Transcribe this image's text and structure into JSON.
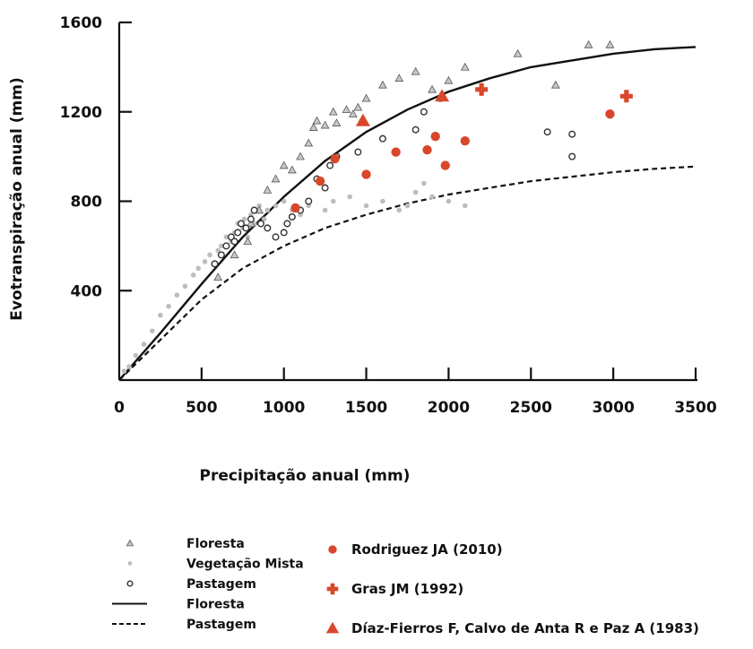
{
  "chart_data": {
    "type": "scatter",
    "xlabel": "Precipitação anual (mm)",
    "ylabel": "Evotranspiração anual (mm)",
    "xlim": [
      0,
      3500
    ],
    "ylim": [
      0,
      1600
    ],
    "xticks": [
      0,
      500,
      1000,
      1500,
      2000,
      2500,
      3000,
      3500
    ],
    "yticks": [
      400,
      800,
      1200,
      1600
    ],
    "grid": false,
    "legend_placement": "bottom",
    "colors": {
      "rodriguez": "#d9472b",
      "gras": "#d9472b",
      "diaz": "#d9472b",
      "background_points": "#999999"
    },
    "series": [
      {
        "name": "Floresta",
        "kind": "scatter",
        "marker": "small-triangle",
        "points": [
          [
            600,
            460
          ],
          [
            700,
            560
          ],
          [
            780,
            620
          ],
          [
            800,
            700
          ],
          [
            850,
            760
          ],
          [
            900,
            850
          ],
          [
            950,
            900
          ],
          [
            1000,
            960
          ],
          [
            1050,
            940
          ],
          [
            1100,
            1000
          ],
          [
            1150,
            1060
          ],
          [
            1180,
            1130
          ],
          [
            1200,
            1160
          ],
          [
            1250,
            1140
          ],
          [
            1300,
            1200
          ],
          [
            1320,
            1150
          ],
          [
            1380,
            1210
          ],
          [
            1420,
            1190
          ],
          [
            1450,
            1220
          ],
          [
            1500,
            1260
          ],
          [
            1600,
            1320
          ],
          [
            1700,
            1350
          ],
          [
            1800,
            1380
          ],
          [
            1900,
            1300
          ],
          [
            2000,
            1340
          ],
          [
            2100,
            1400
          ],
          [
            2420,
            1460
          ],
          [
            2650,
            1320
          ],
          [
            2850,
            1500
          ],
          [
            2980,
            1500
          ]
        ]
      },
      {
        "name": "Vegetação Mista",
        "kind": "scatter",
        "marker": "light-dot",
        "points": [
          [
            30,
            40
          ],
          [
            60,
            60
          ],
          [
            100,
            110
          ],
          [
            150,
            160
          ],
          [
            200,
            220
          ],
          [
            250,
            290
          ],
          [
            300,
            330
          ],
          [
            350,
            380
          ],
          [
            400,
            420
          ],
          [
            450,
            470
          ],
          [
            480,
            500
          ],
          [
            520,
            530
          ],
          [
            550,
            560
          ],
          [
            600,
            580
          ],
          [
            620,
            600
          ],
          [
            650,
            640
          ],
          [
            680,
            620
          ],
          [
            700,
            660
          ],
          [
            720,
            700
          ],
          [
            750,
            680
          ],
          [
            760,
            720
          ],
          [
            780,
            640
          ],
          [
            800,
            740
          ],
          [
            820,
            700
          ],
          [
            850,
            780
          ],
          [
            880,
            720
          ],
          [
            900,
            760
          ],
          [
            950,
            780
          ],
          [
            1000,
            800
          ],
          [
            1050,
            760
          ],
          [
            1100,
            740
          ],
          [
            1150,
            780
          ],
          [
            1250,
            760
          ],
          [
            1300,
            800
          ],
          [
            1400,
            820
          ],
          [
            1500,
            780
          ],
          [
            1600,
            800
          ],
          [
            1700,
            760
          ],
          [
            1750,
            780
          ],
          [
            1800,
            840
          ],
          [
            1850,
            880
          ],
          [
            1900,
            820
          ],
          [
            2000,
            800
          ],
          [
            2100,
            780
          ]
        ]
      },
      {
        "name": "Pastagem",
        "kind": "scatter",
        "marker": "open-circle",
        "points": [
          [
            580,
            520
          ],
          [
            620,
            560
          ],
          [
            650,
            600
          ],
          [
            680,
            640
          ],
          [
            700,
            620
          ],
          [
            720,
            660
          ],
          [
            740,
            700
          ],
          [
            770,
            680
          ],
          [
            800,
            720
          ],
          [
            820,
            760
          ],
          [
            860,
            700
          ],
          [
            900,
            680
          ],
          [
            950,
            640
          ],
          [
            1000,
            660
          ],
          [
            1020,
            700
          ],
          [
            1050,
            730
          ],
          [
            1100,
            760
          ],
          [
            1150,
            800
          ],
          [
            1200,
            900
          ],
          [
            1250,
            860
          ],
          [
            1280,
            960
          ],
          [
            1320,
            1000
          ],
          [
            1450,
            1020
          ],
          [
            1600,
            1080
          ],
          [
            1800,
            1120
          ],
          [
            1850,
            1200
          ],
          [
            1950,
            1260
          ],
          [
            2600,
            1110
          ],
          [
            2750,
            1100
          ],
          [
            2750,
            1000
          ]
        ]
      },
      {
        "name": "Floresta",
        "kind": "line",
        "style": "solid",
        "points": [
          [
            0,
            0
          ],
          [
            250,
            210
          ],
          [
            500,
            430
          ],
          [
            750,
            640
          ],
          [
            1000,
            820
          ],
          [
            1250,
            980
          ],
          [
            1500,
            1110
          ],
          [
            1750,
            1210
          ],
          [
            2000,
            1290
          ],
          [
            2250,
            1350
          ],
          [
            2500,
            1400
          ],
          [
            2750,
            1430
          ],
          [
            3000,
            1460
          ],
          [
            3250,
            1480
          ],
          [
            3500,
            1490
          ]
        ]
      },
      {
        "name": "Pastagem",
        "kind": "line",
        "style": "dashed",
        "points": [
          [
            0,
            0
          ],
          [
            250,
            180
          ],
          [
            500,
            360
          ],
          [
            750,
            500
          ],
          [
            1000,
            600
          ],
          [
            1250,
            680
          ],
          [
            1500,
            740
          ],
          [
            1750,
            790
          ],
          [
            2000,
            830
          ],
          [
            2250,
            860
          ],
          [
            2500,
            890
          ],
          [
            2750,
            910
          ],
          [
            3000,
            930
          ],
          [
            3250,
            945
          ],
          [
            3500,
            955
          ]
        ]
      },
      {
        "name": "Rodriguez JA (2010)",
        "kind": "scatter",
        "marker": "filled-circle",
        "points": [
          [
            1070,
            770
          ],
          [
            1220,
            890
          ],
          [
            1310,
            990
          ],
          [
            1500,
            920
          ],
          [
            1680,
            1020
          ],
          [
            1870,
            1030
          ],
          [
            1920,
            1090
          ],
          [
            1980,
            960
          ],
          [
            2100,
            1070
          ],
          [
            2980,
            1190
          ]
        ]
      },
      {
        "name": "Gras JM (1992)",
        "kind": "scatter",
        "marker": "cross",
        "points": [
          [
            2200,
            1300
          ],
          [
            3080,
            1270
          ]
        ]
      },
      {
        "name": "Díaz-Fierros F, Calvo de Anta R e Paz A (1983)",
        "kind": "scatter",
        "marker": "filled-triangle",
        "points": [
          [
            1480,
            1160
          ],
          [
            1960,
            1270
          ]
        ]
      }
    ]
  }
}
